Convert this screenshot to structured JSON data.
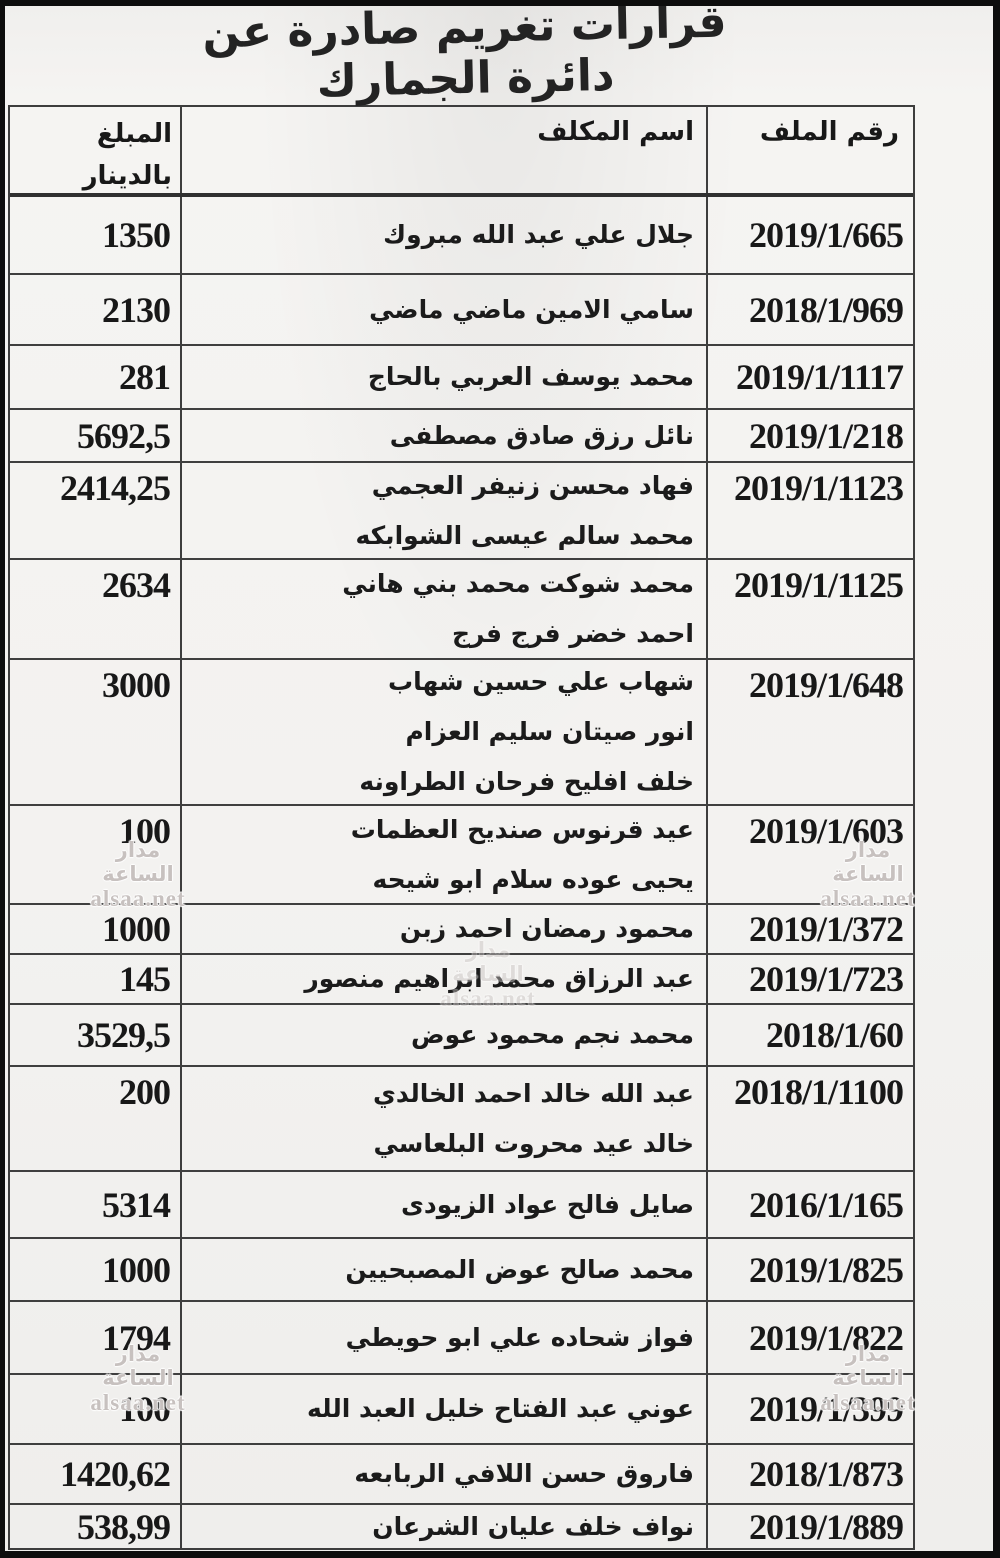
{
  "title": "قرارات تغريم صادرة عن دائرة الجمارك",
  "table": {
    "columns": {
      "file": "رقم الملف",
      "name": "اسم المكلف",
      "amount_line1": "المبلغ",
      "amount_line2": "بالدينار"
    },
    "rows": [
      {
        "file": "2019/1/665",
        "names": [
          "جلال علي عبد الله مبروك"
        ],
        "amount": "1350"
      },
      {
        "file": "2018/1/969",
        "names": [
          "سامي الامين ماضي ماضي"
        ],
        "amount": "2130"
      },
      {
        "file": "2019/1/1117",
        "names": [
          "محمد يوسف العربي بالحاج"
        ],
        "amount": "281"
      },
      {
        "file": "2019/1/218",
        "names": [
          "نائل رزق صادق مصطفى"
        ],
        "amount": "5692,5"
      },
      {
        "file": "2019/1/1123",
        "names": [
          "فهاد محسن زنيفر العجمي",
          "محمد سالم عيسى الشوابكه"
        ],
        "amount": "2414,25"
      },
      {
        "file": "2019/1/1125",
        "names": [
          "محمد شوكت محمد بني هاني",
          "احمد خضر فرج فرج"
        ],
        "amount": "2634"
      },
      {
        "file": "2019/1/648",
        "names": [
          "شهاب علي حسين شهاب",
          "انور صيتان سليم العزام",
          "خلف افليح فرحان الطراونه"
        ],
        "amount": "3000"
      },
      {
        "file": "2019/1/603",
        "names": [
          "عيد قرنوس صنديح العظمات",
          "يحيى عوده سلام ابو شيحه"
        ],
        "amount": "100"
      },
      {
        "file": "2019/1/372",
        "names": [
          "محمود رمضان احمد زبن"
        ],
        "amount": "1000"
      },
      {
        "file": "2019/1/723",
        "names": [
          "عبد الرزاق محمد ابراهيم منصور"
        ],
        "amount": "145"
      },
      {
        "file": "2018/1/60",
        "names": [
          "محمد نجم محمود عوض"
        ],
        "amount": "3529,5"
      },
      {
        "file": "2018/1/1100",
        "names": [
          "عبد الله خالد احمد الخالدي",
          "خالد عيد محروت البلعاسي"
        ],
        "amount": "200"
      },
      {
        "file": "2016/1/165",
        "names": [
          "صايل فالح عواد الزيودى"
        ],
        "amount": "5314"
      },
      {
        "file": "2019/1/825",
        "names": [
          "محمد صالح عوض المصبحيين"
        ],
        "amount": "1000"
      },
      {
        "file": "2019/1/822",
        "names": [
          "فواز شحاده علي ابو حويطي"
        ],
        "amount": "1794"
      },
      {
        "file": "2019/1/399",
        "names": [
          "عوني عبد الفتاح خليل العبد الله"
        ],
        "amount": "100"
      },
      {
        "file": "2018/1/873",
        "names": [
          "فاروق حسن اللافي الربابعه"
        ],
        "amount": "1420,62"
      },
      {
        "file": "2019/1/889",
        "names": [
          "نواف خلف عليان الشرعان"
        ],
        "amount": "538,99"
      }
    ]
  },
  "watermark": {
    "line1": "مدار الساعة",
    "line2": "alsaa.net"
  },
  "colors": {
    "paper": "#f3f2f0",
    "ink": "#1b1b1b",
    "table_border": "#3d3d3d",
    "photo_edge": "#0d0d0d",
    "watermark": "#c7c1bf"
  }
}
